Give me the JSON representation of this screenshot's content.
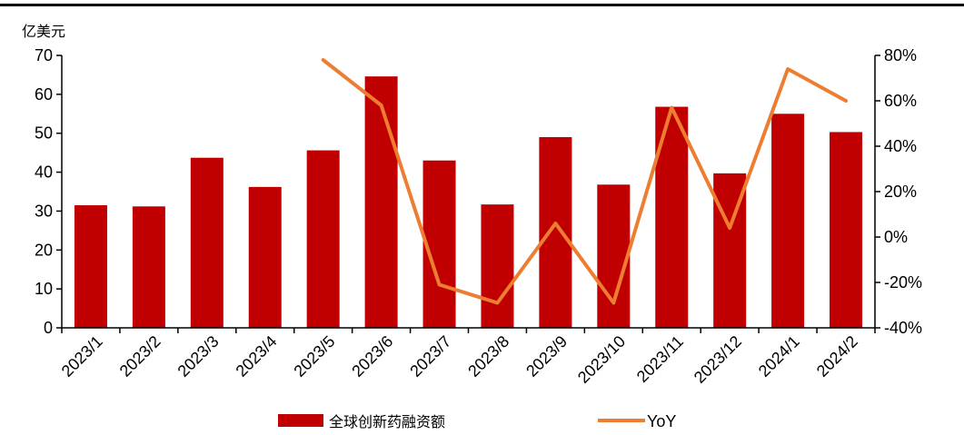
{
  "chart_data": {
    "type": "bar",
    "y_unit_label": "亿美元",
    "categories": [
      "2023/1",
      "2023/2",
      "2023/3",
      "2023/4",
      "2023/5",
      "2023/6",
      "2023/7",
      "2023/8",
      "2023/9",
      "2023/10",
      "2023/11",
      "2023/12",
      "2024/1",
      "2024/2"
    ],
    "series": [
      {
        "name": "全球创新药融资额",
        "type": "bar",
        "axis": "left",
        "color": "#C00000",
        "values": [
          31.5,
          31.2,
          43.7,
          36.2,
          45.6,
          64.6,
          43.0,
          31.7,
          49.0,
          36.8,
          56.8,
          39.7,
          55.0,
          50.3
        ]
      },
      {
        "name": "YoY",
        "type": "line",
        "axis": "right",
        "color": "#ED7D31",
        "values": [
          null,
          null,
          null,
          null,
          78,
          58,
          -21,
          -29,
          6,
          -29,
          57,
          4,
          74,
          60
        ]
      }
    ],
    "left_axis": {
      "min": 0,
      "max": 70,
      "ticks": [
        0,
        10,
        20,
        30,
        40,
        50,
        60,
        70
      ]
    },
    "right_axis": {
      "min": -40,
      "max": 80,
      "ticks": [
        -40,
        -20,
        0,
        20,
        40,
        60,
        80
      ],
      "tick_labels": [
        "-40%",
        "-20%",
        "0%",
        "20%",
        "40%",
        "60%",
        "80%"
      ]
    },
    "grid": false,
    "legend_position": "bottom"
  }
}
